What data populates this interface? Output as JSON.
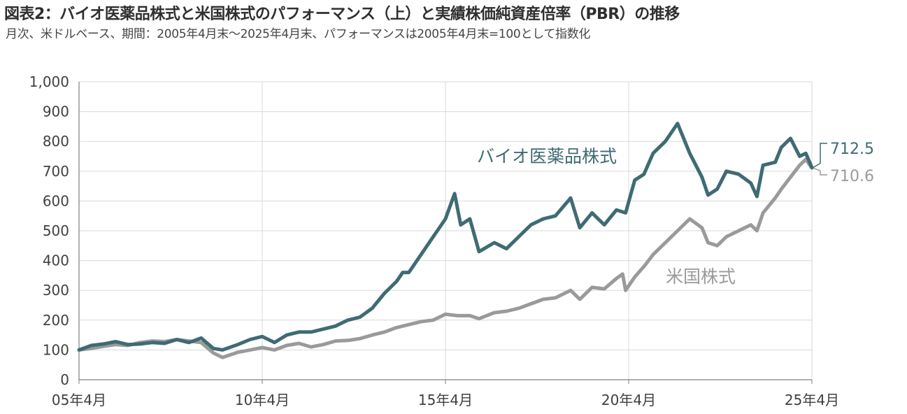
{
  "title": "図表2：バイオ医薬品株式と米国株式のパフォーマンス（上）と実績株価純資産倍率（PBR）の推移",
  "subtitle": "月次、米ドルベース、期間：2005年4月末～2025年4月末、パフォーマンスは2005年4月末=100として指数化",
  "colors": {
    "bio": "#3f6b73",
    "us": "#9a9a9a",
    "grid": "#d9d9d9",
    "axis": "#7f7f7f"
  },
  "chart_data": {
    "type": "line",
    "title": "図表2：バイオ医薬品株式と米国株式のパフォーマンス（上）と実績株価純資産倍率（PBR）の推移",
    "xlabel": "",
    "ylabel": "",
    "ylim": [
      0,
      1000
    ],
    "yticks": [
      0,
      100,
      200,
      300,
      400,
      500,
      600,
      700,
      800,
      900,
      1000
    ],
    "ytick_labels": [
      "0",
      "100",
      "200",
      "300",
      "400",
      "500",
      "600",
      "700",
      "800",
      "900",
      "1,000"
    ],
    "xlim": [
      "2005-04",
      "2025-04"
    ],
    "xticks": [
      "2005-04",
      "2010-04",
      "2015-04",
      "2020-04",
      "2025-04"
    ],
    "xtick_labels": [
      "05年4月",
      "10年4月",
      "15年4月",
      "20年4月",
      "25年4月"
    ],
    "grid": true,
    "series": [
      {
        "name": "バイオ医薬品株式",
        "color": "#3f6b73",
        "end_value_label": "712.5",
        "points": [
          [
            "2005-04",
            100
          ],
          [
            "2005-08",
            115
          ],
          [
            "2005-12",
            120
          ],
          [
            "2006-04",
            128
          ],
          [
            "2006-08",
            118
          ],
          [
            "2006-12",
            120
          ],
          [
            "2007-04",
            125
          ],
          [
            "2007-08",
            122
          ],
          [
            "2007-12",
            135
          ],
          [
            "2008-04",
            125
          ],
          [
            "2008-08",
            140
          ],
          [
            "2008-12",
            105
          ],
          [
            "2009-03",
            100
          ],
          [
            "2009-08",
            118
          ],
          [
            "2009-12",
            135
          ],
          [
            "2010-04",
            145
          ],
          [
            "2010-08",
            125
          ],
          [
            "2010-12",
            150
          ],
          [
            "2011-04",
            160
          ],
          [
            "2011-08",
            160
          ],
          [
            "2011-12",
            170
          ],
          [
            "2012-04",
            180
          ],
          [
            "2012-08",
            200
          ],
          [
            "2012-12",
            210
          ],
          [
            "2013-04",
            240
          ],
          [
            "2013-08",
            290
          ],
          [
            "2013-12",
            330
          ],
          [
            "2014-02",
            360
          ],
          [
            "2014-04",
            360
          ],
          [
            "2014-08",
            420
          ],
          [
            "2014-12",
            480
          ],
          [
            "2015-04",
            540
          ],
          [
            "2015-07",
            625
          ],
          [
            "2015-09",
            520
          ],
          [
            "2015-12",
            540
          ],
          [
            "2016-03",
            430
          ],
          [
            "2016-08",
            460
          ],
          [
            "2016-12",
            440
          ],
          [
            "2017-04",
            480
          ],
          [
            "2017-08",
            520
          ],
          [
            "2017-12",
            540
          ],
          [
            "2018-04",
            550
          ],
          [
            "2018-09",
            610
          ],
          [
            "2018-12",
            510
          ],
          [
            "2019-04",
            560
          ],
          [
            "2019-08",
            520
          ],
          [
            "2019-12",
            570
          ],
          [
            "2020-03",
            560
          ],
          [
            "2020-06",
            670
          ],
          [
            "2020-09",
            690
          ],
          [
            "2020-12",
            760
          ],
          [
            "2021-04",
            800
          ],
          [
            "2021-08",
            860
          ],
          [
            "2021-12",
            760
          ],
          [
            "2022-04",
            680
          ],
          [
            "2022-06",
            620
          ],
          [
            "2022-09",
            640
          ],
          [
            "2022-12",
            700
          ],
          [
            "2023-04",
            690
          ],
          [
            "2023-08",
            660
          ],
          [
            "2023-10",
            615
          ],
          [
            "2023-12",
            720
          ],
          [
            "2024-04",
            730
          ],
          [
            "2024-06",
            780
          ],
          [
            "2024-09",
            810
          ],
          [
            "2024-12",
            750
          ],
          [
            "2025-02",
            760
          ],
          [
            "2025-04",
            712.5
          ]
        ]
      },
      {
        "name": "米国株式",
        "color": "#9a9a9a",
        "end_value_label": "710.6",
        "points": [
          [
            "2005-04",
            100
          ],
          [
            "2005-08",
            105
          ],
          [
            "2005-12",
            112
          ],
          [
            "2006-04",
            118
          ],
          [
            "2006-08",
            115
          ],
          [
            "2006-12",
            125
          ],
          [
            "2007-04",
            130
          ],
          [
            "2007-08",
            128
          ],
          [
            "2007-12",
            135
          ],
          [
            "2008-04",
            130
          ],
          [
            "2008-08",
            125
          ],
          [
            "2008-12",
            90
          ],
          [
            "2009-03",
            75
          ],
          [
            "2009-08",
            92
          ],
          [
            "2009-12",
            100
          ],
          [
            "2010-04",
            108
          ],
          [
            "2010-08",
            100
          ],
          [
            "2010-12",
            115
          ],
          [
            "2011-04",
            122
          ],
          [
            "2011-08",
            110
          ],
          [
            "2011-12",
            118
          ],
          [
            "2012-04",
            130
          ],
          [
            "2012-08",
            132
          ],
          [
            "2012-12",
            138
          ],
          [
            "2013-04",
            150
          ],
          [
            "2013-08",
            160
          ],
          [
            "2013-12",
            175
          ],
          [
            "2014-04",
            185
          ],
          [
            "2014-08",
            195
          ],
          [
            "2014-12",
            200
          ],
          [
            "2015-04",
            220
          ],
          [
            "2015-08",
            215
          ],
          [
            "2015-12",
            215
          ],
          [
            "2016-03",
            205
          ],
          [
            "2016-08",
            225
          ],
          [
            "2016-12",
            230
          ],
          [
            "2017-04",
            240
          ],
          [
            "2017-08",
            255
          ],
          [
            "2017-12",
            270
          ],
          [
            "2018-04",
            275
          ],
          [
            "2018-09",
            300
          ],
          [
            "2018-12",
            270
          ],
          [
            "2019-04",
            310
          ],
          [
            "2019-08",
            305
          ],
          [
            "2019-12",
            340
          ],
          [
            "2020-02",
            355
          ],
          [
            "2020-03",
            300
          ],
          [
            "2020-06",
            345
          ],
          [
            "2020-09",
            380
          ],
          [
            "2020-12",
            420
          ],
          [
            "2021-04",
            460
          ],
          [
            "2021-08",
            500
          ],
          [
            "2021-12",
            540
          ],
          [
            "2022-04",
            510
          ],
          [
            "2022-06",
            460
          ],
          [
            "2022-09",
            450
          ],
          [
            "2022-12",
            480
          ],
          [
            "2023-04",
            500
          ],
          [
            "2023-08",
            520
          ],
          [
            "2023-10",
            500
          ],
          [
            "2023-12",
            560
          ],
          [
            "2024-04",
            610
          ],
          [
            "2024-06",
            640
          ],
          [
            "2024-09",
            680
          ],
          [
            "2024-12",
            720
          ],
          [
            "2025-02",
            740
          ],
          [
            "2025-04",
            710.6
          ]
        ]
      }
    ]
  }
}
